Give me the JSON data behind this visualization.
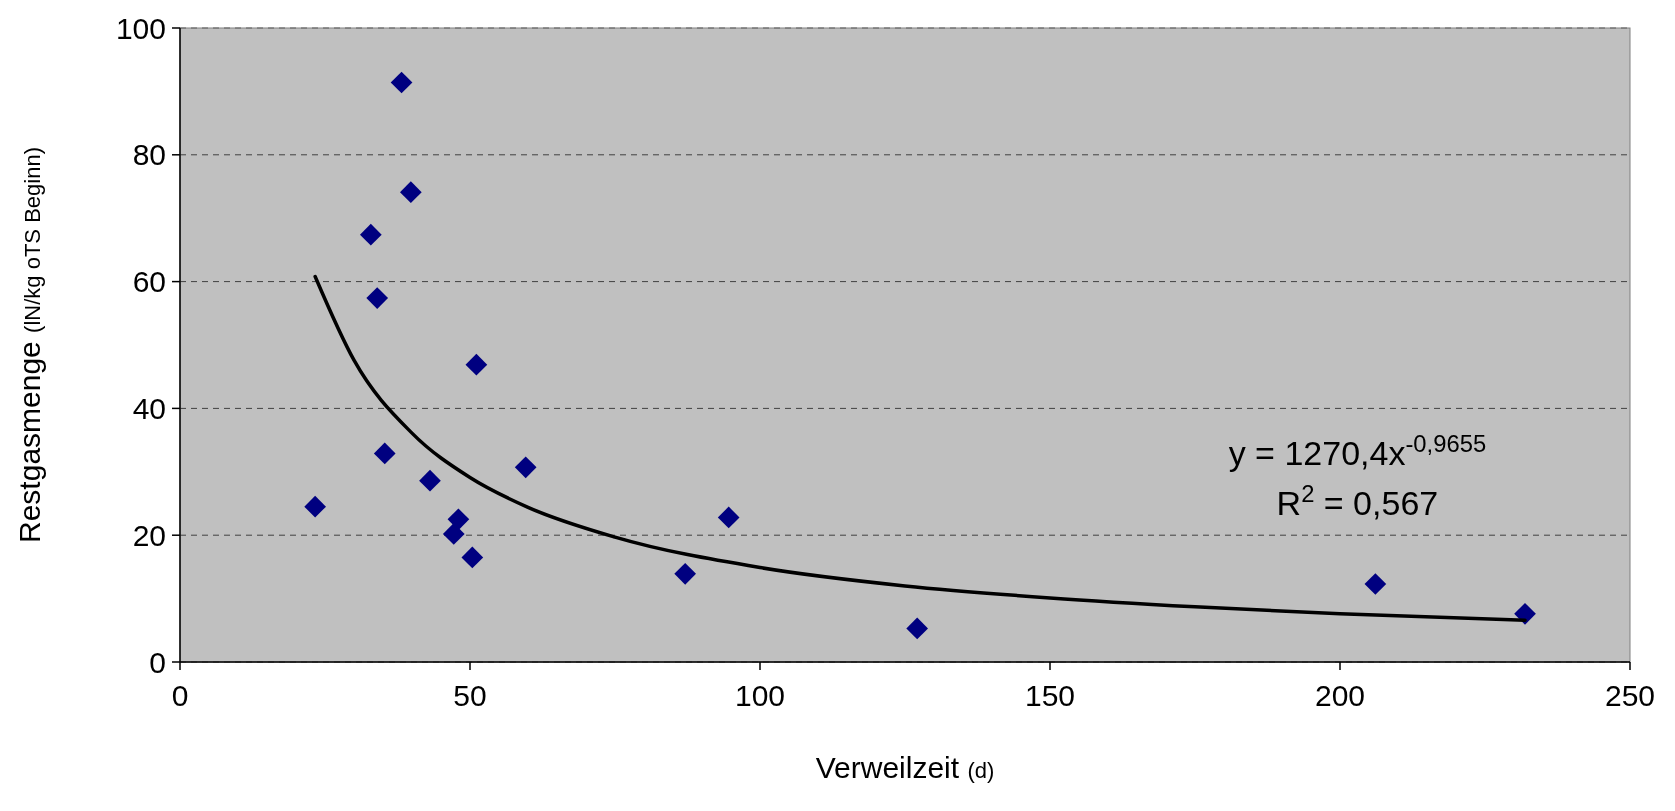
{
  "chart_data": {
    "type": "scatter",
    "xlabel": "Verweilzeit (d)",
    "ylabel": "Restgasmenge (lN/kg oTS Beginn)",
    "annotations": [
      "y = 1270,4x$^{-0,9655}$",
      "R$^{2}$ = 0,567"
    ],
    "series": [
      {
        "color": "#000080",
        "marker": "diamond",
        "x": [
          38.2,
          39.8,
          32.9,
          34.0,
          51.1,
          35.3,
          59.6,
          43.1,
          23.3,
          48.0,
          47.2,
          50.4,
          87.1,
          94.6,
          127.1,
          206.1,
          231.9
        ],
        "values": [
          91.4,
          74.1,
          67.4,
          57.4,
          46.9,
          32.9,
          30.7,
          28.6,
          24.5,
          22.5,
          20.2,
          16.5,
          13.9,
          22.8,
          5.3,
          12.3,
          7.6
        ]
      },
      {
        "type": "line",
        "color": "#000000",
        "x": [
          23.3,
          30,
          40,
          50,
          60,
          75,
          100,
          125,
          150,
          175,
          200,
          231.9
        ],
        "values": [
          60.8,
          47.6,
          36.1,
          29.1,
          24.4,
          19.7,
          14.9,
          12.0,
          10.1,
          8.7,
          7.6,
          6.6
        ]
      }
    ],
    "xlim": [
      0,
      250
    ],
    "xticks": [
      0,
      50,
      100,
      150,
      200,
      250
    ],
    "ylim": [
      0,
      100
    ],
    "yticks": [
      0,
      20,
      40,
      60,
      80,
      100
    ],
    "grid": "y"
  }
}
